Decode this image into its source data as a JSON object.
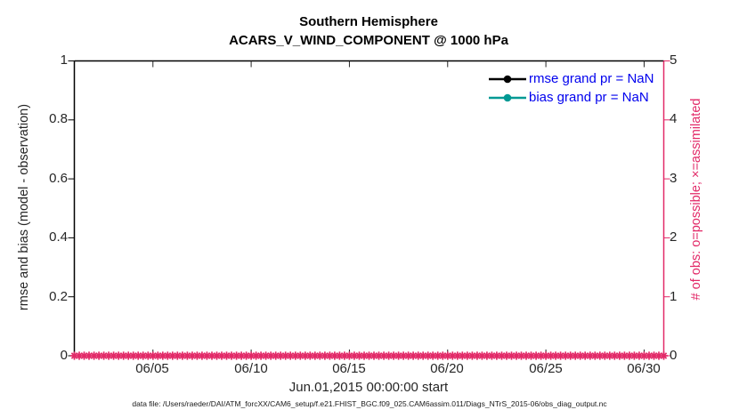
{
  "figure": {
    "background": "#ffffff",
    "accent_magenta": "#E22A68",
    "accent_teal": "#009994",
    "legend_text_color": "#0000EE"
  },
  "caption": "data file: /Users/raeder/DAI/ATM_forcXX/CAM6_setup/f.e21.FHIST_BGC.f09_025.CAM6assim.011/Diags_NTrS_2015-06/obs_diag_output.nc",
  "chart_data": {
    "type": "line",
    "title": "Southern Hemisphere",
    "subtitle": "ACARS_V_WIND_COMPONENT @ 1000 hPa",
    "grid": false,
    "x_axis": {
      "label": "Jun.01,2015 00:00:00 start",
      "start": "2015-06-01 00:00:00",
      "end": "2015-07-01 00:00:00",
      "span_days": 30,
      "tick_labels": [
        "06/05",
        "06/10",
        "06/15",
        "06/20",
        "06/25",
        "06/30"
      ],
      "tick_days": [
        4,
        9,
        14,
        19,
        24,
        29
      ]
    },
    "y_left": {
      "label": "rmse and bias (model - observation)",
      "lim": [
        0,
        1
      ],
      "tick_labels_top_to_bottom": [
        "1",
        "0.8",
        "0.6",
        "0.4",
        "0.2",
        "0"
      ],
      "color": "#000000"
    },
    "y_right": {
      "label": "# of obs: o=possible; ×=assimilated",
      "lim": [
        0,
        5
      ],
      "tick_labels_top_to_bottom": [
        "5",
        "4",
        "3",
        "2",
        "1",
        "0"
      ],
      "color": "#E22A68"
    },
    "legend": {
      "position": "top-right-inside",
      "text_color": "#0000EE",
      "entries": [
        {
          "label": "rmse grand pr = NaN",
          "color": "#000000",
          "marker": "filled-circle"
        },
        {
          "label": "bias grand pr = NaN",
          "color": "#009994",
          "marker": "filled-circle"
        }
      ]
    },
    "series": [
      {
        "name": "rmse",
        "axis": "left",
        "color": "#000000",
        "line": "solid",
        "values": [],
        "note": "grand pr = NaN, no curve plotted"
      },
      {
        "name": "bias",
        "axis": "left",
        "color": "#009994",
        "line": "solid",
        "values": [],
        "note": "grand pr = NaN, no curve plotted"
      },
      {
        "name": "# of obs possible (o)",
        "axis": "right",
        "color": "#E22A68",
        "marker": "o",
        "cadence": "6-hourly",
        "n_points": 121,
        "value_constant": 0
      },
      {
        "name": "# of obs assimilated (×)",
        "axis": "right",
        "color": "#E22A68",
        "marker": "*",
        "cadence": "6-hourly",
        "n_points": 121,
        "value_constant": 0
      }
    ]
  }
}
